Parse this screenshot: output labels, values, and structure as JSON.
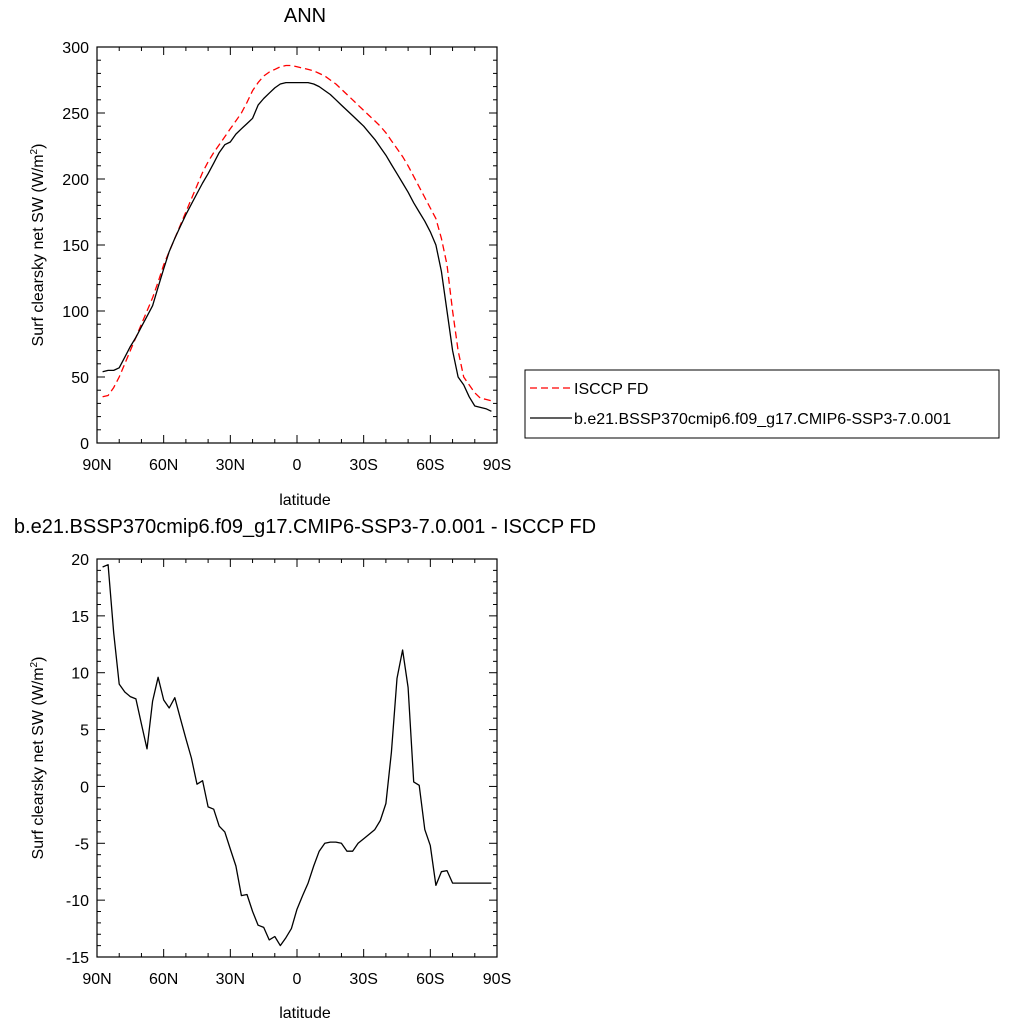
{
  "chart_data": [
    {
      "type": "line",
      "title": "ANN",
      "xlabel": "latitude",
      "ylabel": "Surf clearsky net SW (W/m",
      "ylabel_sup": "2",
      "ylabel_close": ")",
      "xlim": [
        -90,
        90
      ],
      "ylim": [
        0,
        300
      ],
      "x_ticks": [
        -90,
        -60,
        -30,
        0,
        30,
        60,
        90
      ],
      "x_tick_labels": [
        "90N",
        "60N",
        "30N",
        "0",
        "30S",
        "60S",
        "90S"
      ],
      "y_ticks": [
        0,
        50,
        100,
        150,
        200,
        250,
        300
      ],
      "y_tick_labels": [
        "0",
        "50",
        "100",
        "150",
        "200",
        "250",
        "300"
      ],
      "grid": false,
      "legend_position": "right",
      "series": [
        {
          "name": "ISCCP FD",
          "color": "#ff0000",
          "dash": "dashed",
          "x": [
            -87.5,
            -85,
            -82.5,
            -80,
            -77.5,
            -75,
            -72.5,
            -70,
            -67.5,
            -65,
            -62.5,
            -60,
            -57.5,
            -55,
            -52.5,
            -50,
            -47.5,
            -45,
            -42.5,
            -40,
            -37.5,
            -35,
            -32.5,
            -30,
            -27.5,
            -25,
            -22.5,
            -20,
            -17.5,
            -15,
            -12.5,
            -10,
            -7.5,
            -5,
            -2.5,
            0,
            2.5,
            5,
            7.5,
            10,
            12.5,
            15,
            17.5,
            20,
            22.5,
            25,
            27.5,
            30,
            32.5,
            35,
            37.5,
            40,
            42.5,
            45,
            47.5,
            50,
            52.5,
            55,
            57.5,
            60,
            62.5,
            65,
            67.5,
            70,
            72.5,
            75,
            77.5,
            80,
            82.5,
            85,
            87.5
          ],
          "values": [
            35,
            36,
            42,
            50,
            60,
            70,
            80,
            90,
            100,
            110,
            122,
            135,
            145,
            155,
            165,
            175,
            185,
            195,
            205,
            213,
            220,
            226,
            232,
            238,
            244,
            250,
            258,
            267,
            273,
            278,
            281,
            283,
            285,
            286,
            286,
            285,
            284,
            283,
            282,
            280,
            278,
            275,
            272,
            268,
            264,
            260,
            256,
            252,
            248,
            244,
            240,
            235,
            229,
            223,
            217,
            210,
            202,
            194,
            186,
            178,
            170,
            155,
            135,
            100,
            70,
            50,
            44,
            38,
            34,
            33,
            32
          ]
        },
        {
          "name": "b.e21.BSSP370cmip6.f09_g17.CMIP6-SSP3-7.0.001",
          "color": "#000000",
          "dash": "solid",
          "x": [
            -87.5,
            -85,
            -82.5,
            -80,
            -77.5,
            -75,
            -72.5,
            -70,
            -67.5,
            -65,
            -62.5,
            -60,
            -57.5,
            -55,
            -52.5,
            -50,
            -47.5,
            -45,
            -42.5,
            -40,
            -37.5,
            -35,
            -32.5,
            -30,
            -27.5,
            -25,
            -22.5,
            -20,
            -17.5,
            -15,
            -12.5,
            -10,
            -7.5,
            -5,
            -2.5,
            0,
            2.5,
            5,
            7.5,
            10,
            12.5,
            15,
            17.5,
            20,
            22.5,
            25,
            27.5,
            30,
            32.5,
            35,
            37.5,
            40,
            42.5,
            45,
            47.5,
            50,
            52.5,
            55,
            57.5,
            60,
            62.5,
            65,
            67.5,
            70,
            72.5,
            75,
            77.5,
            80,
            82.5,
            85,
            87.5
          ],
          "values": [
            54,
            55,
            55,
            57,
            65,
            73,
            80,
            88,
            96,
            104,
            118,
            132,
            145,
            155,
            164,
            173,
            181,
            189,
            197,
            204,
            212,
            220,
            226,
            228,
            234,
            238,
            242,
            246,
            256,
            261,
            265,
            269,
            272,
            273,
            273,
            273,
            273,
            273,
            272,
            270,
            267,
            264,
            260,
            256,
            252,
            248,
            244,
            240,
            235,
            230,
            224,
            218,
            211,
            204,
            197,
            190,
            182,
            175,
            168,
            160,
            150,
            130,
            100,
            70,
            50,
            44,
            35,
            28,
            27,
            26,
            24
          ]
        }
      ]
    },
    {
      "type": "line",
      "title": "b.e21.BSSP370cmip6.f09_g17.CMIP6-SSP3-7.0.001 - ISCCP FD",
      "xlabel": "latitude",
      "ylabel": "Surf clearsky net SW (W/m",
      "ylabel_sup": "2",
      "ylabel_close": ")",
      "xlim": [
        -90,
        90
      ],
      "ylim": [
        -15,
        20
      ],
      "x_ticks": [
        -90,
        -60,
        -30,
        0,
        30,
        60,
        90
      ],
      "x_tick_labels": [
        "90N",
        "60N",
        "30N",
        "0",
        "30S",
        "60S",
        "90S"
      ],
      "y_ticks": [
        -15,
        -10,
        -5,
        0,
        5,
        10,
        15,
        20
      ],
      "y_tick_labels": [
        "-15",
        "-10",
        "-5",
        "0",
        "5",
        "10",
        "15",
        "20"
      ],
      "grid": false,
      "series": [
        {
          "color": "#000000",
          "dash": "solid",
          "x": [
            -87.5,
            -85,
            -82.5,
            -80,
            -77.5,
            -75,
            -72.5,
            -70,
            -67.5,
            -65,
            -62.5,
            -60,
            -57.5,
            -55,
            -52.5,
            -50,
            -47.5,
            -45,
            -42.5,
            -40,
            -37.5,
            -35,
            -32.5,
            -30,
            -27.5,
            -25,
            -22.5,
            -20,
            -17.5,
            -15,
            -12.5,
            -10,
            -7.5,
            -5,
            -2.5,
            0,
            2.5,
            5,
            7.5,
            10,
            12.5,
            15,
            17.5,
            20,
            22.5,
            25,
            27.5,
            30,
            32.5,
            35,
            37.5,
            40,
            42.5,
            45,
            47.5,
            50,
            52.5,
            55,
            57.5,
            60,
            62.5,
            65,
            67.5,
            70,
            72.5,
            75,
            77.5,
            80,
            82.5,
            85,
            87.5
          ],
          "values": [
            19.3,
            19.5,
            13.5,
            9.0,
            8.3,
            7.9,
            7.7,
            5.5,
            3.3,
            7.5,
            9.6,
            7.6,
            6.9,
            7.8,
            6.0,
            4.2,
            2.5,
            0.2,
            0.5,
            -1.8,
            -2.0,
            -3.5,
            -4.0,
            -5.5,
            -7.0,
            -9.6,
            -9.5,
            -11.0,
            -12.2,
            -12.4,
            -13.5,
            -13.2,
            -14.0,
            -13.3,
            -12.5,
            -10.8,
            -9.6,
            -8.5,
            -7.0,
            -5.7,
            -5.0,
            -4.9,
            -4.9,
            -5.0,
            -5.7,
            -5.7,
            -5.0,
            -4.6,
            -4.2,
            -3.8,
            -3.0,
            -1.5,
            3.0,
            9.5,
            12.0,
            8.7,
            0.4,
            0.1,
            -3.8,
            -5.2,
            -8.7,
            -7.5,
            -7.4,
            -8.5,
            -8.5,
            -8.5,
            -8.5,
            -8.5,
            -8.5,
            -8.5,
            -8.5
          ]
        }
      ]
    }
  ]
}
